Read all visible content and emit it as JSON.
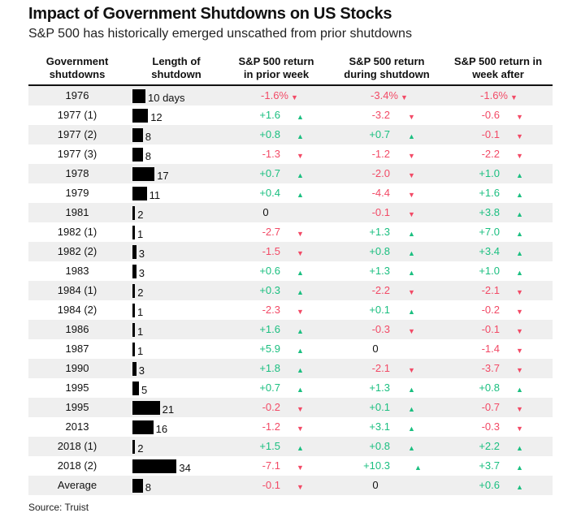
{
  "chart_data": {
    "type": "table",
    "title": "Impact of Government Shutdowns on US Stocks",
    "subtitle": "S&P 500 has historically emerged unscathed from prior shutdowns",
    "columns": [
      "Government shutdowns",
      "Length of shutdown",
      "S&P 500 return in prior week",
      "S&P 500 return during shutdown",
      "S&P 500 return in week after"
    ],
    "column_lines": [
      [
        "Government",
        "shutdowns"
      ],
      [
        "Length of",
        "shutdown"
      ],
      [
        "S&P 500 return",
        "in prior week"
      ],
      [
        "S&P 500 return",
        "during shutdown"
      ],
      [
        "S&P 500 return in",
        "week after"
      ]
    ],
    "rows": [
      {
        "name": "1976",
        "days": 10,
        "len": "10 days",
        "prior": "-1.6%",
        "during": "-3.4%",
        "after": "-1.6%"
      },
      {
        "name": "1977 (1)",
        "days": 12,
        "len": "12",
        "prior": "+1.6",
        "during": "-3.2",
        "after": "-0.6"
      },
      {
        "name": "1977 (2)",
        "days": 8,
        "len": "8",
        "prior": "+0.8",
        "during": "+0.7",
        "after": "-0.1"
      },
      {
        "name": "1977 (3)",
        "days": 8,
        "len": "8",
        "prior": "-1.3",
        "during": "-1.2",
        "after": "-2.2"
      },
      {
        "name": "1978",
        "days": 17,
        "len": "17",
        "prior": "+0.7",
        "during": "-2.0",
        "after": "+1.0"
      },
      {
        "name": "1979",
        "days": 11,
        "len": "11",
        "prior": "+0.4",
        "during": "-4.4",
        "after": "+1.6"
      },
      {
        "name": "1981",
        "days": 2,
        "len": "2",
        "prior": "0",
        "during": "-0.1",
        "after": "+3.8"
      },
      {
        "name": "1982 (1)",
        "days": 1,
        "len": "1",
        "prior": "-2.7",
        "during": "+1.3",
        "after": "+7.0"
      },
      {
        "name": "1982 (2)",
        "days": 3,
        "len": "3",
        "prior": "-1.5",
        "during": "+0.8",
        "after": "+3.4"
      },
      {
        "name": "1983",
        "days": 3,
        "len": "3",
        "prior": "+0.6",
        "during": "+1.3",
        "after": "+1.0"
      },
      {
        "name": "1984 (1)",
        "days": 2,
        "len": "2",
        "prior": "+0.3",
        "during": "-2.2",
        "after": "-2.1"
      },
      {
        "name": "1984 (2)",
        "days": 1,
        "len": "1",
        "prior": "-2.3",
        "during": "+0.1",
        "after": "-0.2"
      },
      {
        "name": "1986",
        "days": 1,
        "len": "1",
        "prior": "+1.6",
        "during": "-0.3",
        "after": "-0.1"
      },
      {
        "name": "1987",
        "days": 1,
        "len": "1",
        "prior": "+5.9",
        "during": "0",
        "after": "-1.4"
      },
      {
        "name": "1990",
        "days": 3,
        "len": "3",
        "prior": "+1.8",
        "during": "-2.1",
        "after": "-3.7"
      },
      {
        "name": "1995",
        "days": 5,
        "len": "5",
        "prior": "+0.7",
        "during": "+1.3",
        "after": "+0.8"
      },
      {
        "name": "1995",
        "days": 21,
        "len": "21",
        "prior": "-0.2",
        "during": "+0.1",
        "after": "-0.7"
      },
      {
        "name": "2013",
        "days": 16,
        "len": "16",
        "prior": "-1.2",
        "during": "+3.1",
        "after": "-0.3"
      },
      {
        "name": "2018 (1)",
        "days": 2,
        "len": "2",
        "prior": "+1.5",
        "during": "+0.8",
        "after": "+2.2"
      },
      {
        "name": "2018 (2)",
        "days": 34,
        "len": "34",
        "prior": "-7.1",
        "during": "+10.3",
        "after": "+3.7"
      },
      {
        "name": "Average",
        "days": 8,
        "len": "8",
        "prior": "-0.1",
        "during": "0",
        "after": "+0.6"
      }
    ],
    "colors": {
      "up": "#1bbf80",
      "down": "#f24a66",
      "stripe": "#efefef"
    },
    "source": "Source: Truist"
  }
}
